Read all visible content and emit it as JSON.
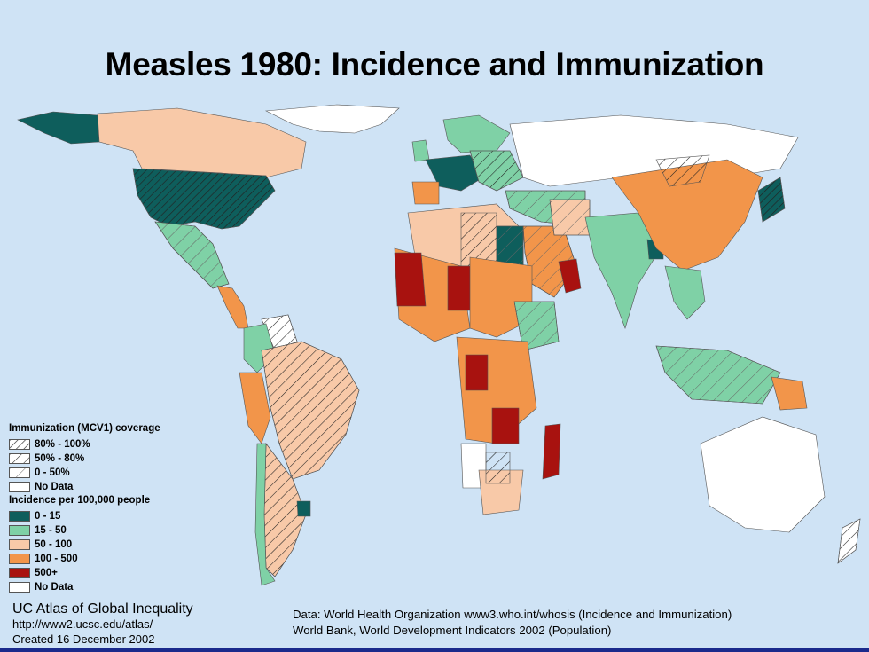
{
  "title": "Measles 1980: Incidence and Immunization",
  "legend": {
    "immunization_heading": "Immunization (MCV1) coverage",
    "immunization_items": [
      {
        "label": "80% - 100%",
        "pattern": "dense-hatch"
      },
      {
        "label": "50% - 80%",
        "pattern": "medium-hatch"
      },
      {
        "label": "0 - 50%",
        "pattern": "sparse-hatch"
      },
      {
        "label": "No Data",
        "pattern": "none"
      }
    ],
    "incidence_heading": "Incidence per 100,000 people",
    "incidence_items": [
      {
        "label": "0 - 15",
        "color": "#0e5e5c"
      },
      {
        "label": "15 - 50",
        "color": "#7fd1a6"
      },
      {
        "label": "50 - 100",
        "color": "#f8c9a8"
      },
      {
        "label": "100 - 500",
        "color": "#f2954a"
      },
      {
        "label": "500+",
        "color": "#a8120f"
      },
      {
        "label": "No Data",
        "color": "#ffffff"
      }
    ]
  },
  "credits": {
    "atlas_name": "UC Atlas of Global Inequality",
    "atlas_url": "http://www2.ucsc.edu/atlas/",
    "created": "Created 16 December 2002",
    "source_line1": "Data: World Health Organization www3.who.int/whosis (Incidence and Immunization)",
    "source_line2": "World Bank, World Development Indicators 2002 (Population)"
  },
  "colors": {
    "ocean": "#cfe3f5",
    "incidence_0_15": "#0e5e5c",
    "incidence_15_50": "#7fd1a6",
    "incidence_50_100": "#f8c9a8",
    "incidence_100_500": "#f2954a",
    "incidence_500_plus": "#a8120f",
    "no_data": "#ffffff"
  }
}
